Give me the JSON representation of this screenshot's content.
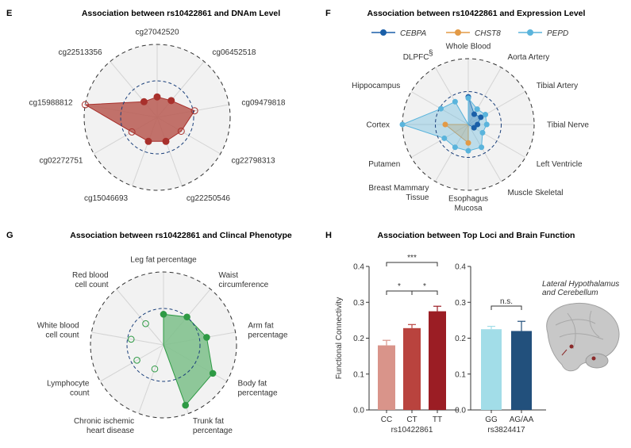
{
  "panels": {
    "E": {
      "letter": "E",
      "title": "Association between rs10422861 and DNAm Level"
    },
    "F": {
      "letter": "F",
      "title": "Association between rs10422861 and Expression Level"
    },
    "G": {
      "letter": "G",
      "title": "Association between rs10422861 and Clincal Phenotype"
    },
    "H": {
      "letter": "H",
      "title": "Association between Top Loci and Brain Function"
    }
  },
  "chart_data": [
    {
      "id": "E",
      "type": "radar",
      "title": "Association between rs10422861 and DNAm Level",
      "axes": [
        "cg27042520",
        "cg06452518",
        "cg09479818",
        "cg22798313",
        "cg22250546",
        "cg15046693",
        "cg02272751",
        "cg15988812",
        "cg22513356"
      ],
      "values": [
        0.28,
        0.3,
        0.52,
        0.38,
        0.35,
        0.35,
        0.4,
        1.0,
        0.28
      ],
      "filled": [
        true,
        true,
        false,
        false,
        true,
        true,
        false,
        false,
        true
      ],
      "inner_ring": 0.5,
      "color": "#a8302c",
      "fill_color": "#b85a52"
    },
    {
      "id": "F",
      "type": "radar",
      "title": "Association between rs10422861 and Expression Level",
      "axes": [
        "Whole Blood",
        "Aorta Artery",
        "Tibial Artery",
        "Tibial Nerve",
        "Left Ventricle",
        "Muscle Skeletal",
        "Esophagus Mucosa",
        "Breast Mammary Tissue",
        "Putamen",
        "Cortex",
        "Hippocampus",
        "DLPFC"
      ],
      "axis_label_lines": [
        [
          "Whole Blood"
        ],
        [
          "Aorta Artery"
        ],
        [
          "Tibial Artery"
        ],
        [
          "Tibial Nerve"
        ],
        [
          "Left Ventricle"
        ],
        [
          "Muscle Skeletal"
        ],
        [
          "Esophagus",
          "Mucosa"
        ],
        [
          "Breast Mammary",
          "Tissue"
        ],
        [
          "Putamen"
        ],
        [
          "Cortex"
        ],
        [
          "Hippocampus"
        ],
        [
          "DLPFC"
        ]
      ],
      "dlpfc_mark": "§",
      "legend": [
        "CEBPA",
        "CHST8",
        "PEPD"
      ],
      "series": [
        {
          "name": "CEBPA",
          "color": "#1a5fa8",
          "values": [
            0.42,
            0.18,
            0.22,
            0.14,
            0.1,
            0,
            0,
            0,
            0,
            0,
            0,
            0
          ]
        },
        {
          "name": "CHST8",
          "color": "#e39a46",
          "values": [
            0,
            0,
            0,
            0,
            0,
            0,
            0.28,
            0,
            0,
            0.35,
            0,
            0
          ]
        },
        {
          "name": "PEPD",
          "color": "#5ab4dc",
          "values": [
            0.4,
            0.27,
            0.3,
            0.28,
            0.25,
            0.4,
            0.4,
            0.4,
            0.42,
            1.0,
            0.48,
            0.4
          ]
        }
      ],
      "inner_ring": 0.5
    },
    {
      "id": "G",
      "type": "radar",
      "title": "Association between rs10422861 and Clincal Phenotype",
      "axes": [
        "Leg fat percentage",
        "Waist circumference",
        "Arm fat percentage",
        "Body fat percentage",
        "Trunk fat percentage",
        "Chronic ischemic heart disease",
        "Lymphocyte count",
        "White blood cell count",
        "Red blood cell count"
      ],
      "axis_label_lines": [
        [
          "Leg fat percentage"
        ],
        [
          "Waist",
          "circumference"
        ],
        [
          "Arm fat",
          "percentage"
        ],
        [
          "Body fat",
          "percentage"
        ],
        [
          "Trunk fat",
          "percentage"
        ],
        [
          "Chronic ischemic",
          "heart disease"
        ],
        [
          "Lymphocyte",
          "count"
        ],
        [
          "White blood",
          "cell count"
        ],
        [
          "Red blood",
          "cell count"
        ]
      ],
      "values": [
        0.42,
        0.5,
        0.6,
        0.78,
        0.88,
        0.35,
        0.42,
        0.45,
        0.38
      ],
      "filled": [
        true,
        true,
        true,
        true,
        true,
        false,
        false,
        false,
        false
      ],
      "inner_ring": 0.5,
      "color": "#2e9a44",
      "fill_color": "#7cc08a"
    },
    {
      "id": "H",
      "type": "bar",
      "title": "Association between Top Loci and Brain Function",
      "ylabel": "Functional Connectivity",
      "ylim": [
        0,
        0.4
      ],
      "yticks": [
        "0.0",
        "0.1",
        "0.2",
        "0.3",
        "0.4"
      ],
      "groups": [
        {
          "xlabel": "rs10422861",
          "categories": [
            "CC",
            "CT",
            "TT"
          ],
          "values": [
            0.18,
            0.228,
            0.275
          ],
          "errors": [
            0.014,
            0.01,
            0.014
          ],
          "colors": [
            "#d9948a",
            "#b9433e",
            "#9b1d24"
          ],
          "significance": [
            {
              "from": 0,
              "to": 1,
              "label": "*"
            },
            {
              "from": 1,
              "to": 2,
              "label": "*"
            },
            {
              "from": 0,
              "to": 2,
              "label": "***"
            }
          ]
        },
        {
          "xlabel": "rs3824417",
          "categories": [
            "GG",
            "AG/AA"
          ],
          "values": [
            0.225,
            0.22
          ],
          "errors": [
            0.008,
            0.027
          ],
          "colors": [
            "#a2dde8",
            "#22507c"
          ],
          "significance": [
            {
              "from": 0,
              "to": 1,
              "label": "n.s."
            }
          ]
        }
      ],
      "brain_caption": [
        "Lateral Hypothalamus",
        "and Cerebellum"
      ]
    }
  ]
}
